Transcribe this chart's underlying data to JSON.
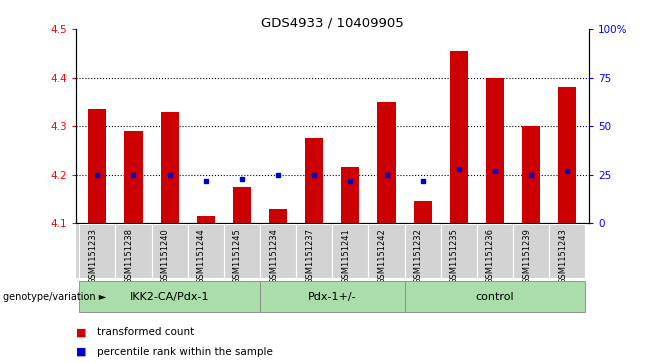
{
  "title": "GDS4933 / 10409905",
  "samples": [
    "GSM1151233",
    "GSM1151238",
    "GSM1151240",
    "GSM1151244",
    "GSM1151245",
    "GSM1151234",
    "GSM1151237",
    "GSM1151241",
    "GSM1151242",
    "GSM1151232",
    "GSM1151235",
    "GSM1151236",
    "GSM1151239",
    "GSM1151243"
  ],
  "red_values": [
    4.335,
    4.29,
    4.33,
    4.115,
    4.175,
    4.13,
    4.275,
    4.215,
    4.35,
    4.145,
    4.455,
    4.4,
    4.3,
    4.38
  ],
  "blue_values": [
    25,
    25,
    25,
    22,
    23,
    25,
    25,
    22,
    25,
    22,
    28,
    27,
    25,
    27
  ],
  "ylim_left": [
    4.1,
    4.5
  ],
  "ylim_right": [
    0,
    100
  ],
  "yticks_left": [
    4.1,
    4.2,
    4.3,
    4.4,
    4.5
  ],
  "yticks_right": [
    0,
    25,
    50,
    75,
    100
  ],
  "ytick_labels_right": [
    "0",
    "25",
    "50",
    "75",
    "100%"
  ],
  "groups": [
    {
      "label": "IKK2-CA/Pdx-1",
      "start": 0,
      "end": 5
    },
    {
      "label": "Pdx-1+/-",
      "start": 5,
      "end": 9
    },
    {
      "label": "control",
      "start": 9,
      "end": 14
    }
  ],
  "group_row_label": "genotype/variation",
  "legend_red_label": "transformed count",
  "legend_blue_label": "percentile rank within the sample",
  "bar_width": 0.5,
  "red_color": "#cc0000",
  "blue_color": "#0000cc",
  "bg_color": "#ffffff",
  "cell_bg": "#d3d3d3",
  "group_color": "#aaddaa",
  "dotted_lines": [
    4.2,
    4.3,
    4.4
  ]
}
